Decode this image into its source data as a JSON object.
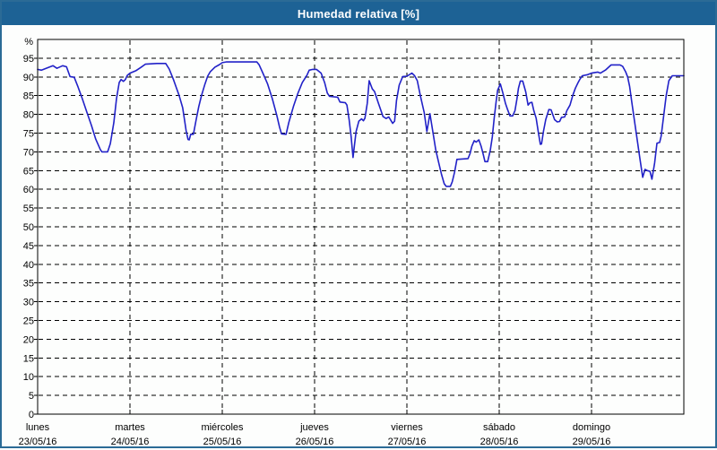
{
  "title": "Humedad relativa [%]",
  "colors": {
    "titlebar": "#1d6295",
    "frame": "#2b6b96",
    "background": "#fdfefd",
    "plot_background": "#ffffff",
    "line": "#2222c8",
    "grid": "#000000",
    "text": "#000000"
  },
  "y_axis": {
    "unit_label": "%",
    "ticks": [
      0,
      5,
      10,
      15,
      20,
      25,
      30,
      35,
      40,
      45,
      50,
      55,
      60,
      65,
      70,
      75,
      80,
      85,
      90,
      95
    ]
  },
  "x_axis": {
    "days": [
      {
        "name": "lunes",
        "date": "23/05/16"
      },
      {
        "name": "martes",
        "date": "24/05/16"
      },
      {
        "name": "miércoles",
        "date": "25/05/16"
      },
      {
        "name": "jueves",
        "date": "26/05/16"
      },
      {
        "name": "viernes",
        "date": "27/05/16"
      },
      {
        "name": "sábado",
        "date": "28/05/16"
      },
      {
        "name": "domingo",
        "date": "29/05/16"
      }
    ]
  },
  "chart_data": {
    "type": "line",
    "title": "Humedad relativa [%]",
    "ylabel": "%",
    "ylim": [
      0,
      100
    ],
    "x_unit": "hours_from_monday_00h",
    "x_range_hours": [
      0,
      168
    ],
    "grid": true,
    "legend": "none",
    "series": [
      {
        "name": "Humedad relativa",
        "color": "#2222c8",
        "points": [
          [
            0,
            92
          ],
          [
            1,
            91.8
          ],
          [
            2.5,
            92.4
          ],
          [
            4,
            93
          ],
          [
            5,
            92.3
          ],
          [
            6.5,
            93
          ],
          [
            7.5,
            92.7
          ],
          [
            8.4,
            90.1
          ],
          [
            9.5,
            89.9
          ],
          [
            10.5,
            87.3
          ],
          [
            11.6,
            84.2
          ],
          [
            12.8,
            80.6
          ],
          [
            14,
            77
          ],
          [
            15.1,
            73.4
          ],
          [
            16.3,
            70.6
          ],
          [
            16.7,
            70
          ],
          [
            18.2,
            70
          ],
          [
            18.9,
            72.2
          ],
          [
            19.8,
            77.8
          ],
          [
            20.5,
            84.2
          ],
          [
            21.2,
            88.5
          ],
          [
            21.7,
            89.3
          ],
          [
            22.3,
            88.8
          ],
          [
            22.8,
            89.3
          ],
          [
            23.3,
            90.4
          ],
          [
            24,
            91
          ],
          [
            25.6,
            91.7
          ],
          [
            26.8,
            92.5
          ],
          [
            28,
            93.4
          ],
          [
            31,
            93.6
          ],
          [
            33.3,
            93.6
          ],
          [
            34.2,
            92.1
          ],
          [
            35.3,
            89.3
          ],
          [
            36,
            87.3
          ],
          [
            36.8,
            85
          ],
          [
            37.7,
            81.8
          ],
          [
            38.2,
            78.5
          ],
          [
            38.6,
            75.6
          ],
          [
            39.1,
            73.3
          ],
          [
            39.4,
            73.2
          ],
          [
            39.8,
            74.7
          ],
          [
            40.5,
            74.7
          ],
          [
            41.2,
            78.5
          ],
          [
            41.9,
            82.1
          ],
          [
            42.6,
            85
          ],
          [
            43.5,
            88.1
          ],
          [
            44.2,
            90.2
          ],
          [
            44.9,
            91.4
          ],
          [
            46.1,
            92.6
          ],
          [
            47.3,
            93.3
          ],
          [
            48,
            93.8
          ],
          [
            49,
            94
          ],
          [
            57,
            94
          ],
          [
            57.6,
            93.2
          ],
          [
            58.6,
            90.9
          ],
          [
            59.8,
            88.1
          ],
          [
            61,
            84.2
          ],
          [
            62.2,
            79.7
          ],
          [
            62.9,
            76.6
          ],
          [
            63.4,
            74.8
          ],
          [
            64.6,
            74.7
          ],
          [
            65.3,
            77.8
          ],
          [
            66.5,
            82.1
          ],
          [
            67.7,
            85.7
          ],
          [
            68.8,
            88.5
          ],
          [
            70,
            90.4
          ],
          [
            70.6,
            91.8
          ],
          [
            71.5,
            92
          ],
          [
            72.5,
            92
          ],
          [
            73.7,
            91
          ],
          [
            74.6,
            88.5
          ],
          [
            75.3,
            85.7
          ],
          [
            75.9,
            84.8
          ],
          [
            78,
            84.6
          ],
          [
            78.6,
            83.3
          ],
          [
            80,
            83.1
          ],
          [
            80.4,
            82.5
          ],
          [
            81,
            78.5
          ],
          [
            81.5,
            74
          ],
          [
            82,
            68.5
          ],
          [
            82.4,
            72
          ],
          [
            82.8,
            75.4
          ],
          [
            83.5,
            78.2
          ],
          [
            84.2,
            78.8
          ],
          [
            84.7,
            78.3
          ],
          [
            85.1,
            79
          ],
          [
            85.7,
            83
          ],
          [
            86.2,
            89
          ],
          [
            87,
            86.8
          ],
          [
            87.6,
            86.1
          ],
          [
            88.6,
            83
          ],
          [
            89.8,
            79.4
          ],
          [
            90.6,
            78.9
          ],
          [
            91.3,
            79.3
          ],
          [
            92.3,
            77.6
          ],
          [
            92.8,
            78.2
          ],
          [
            93.3,
            83.7
          ],
          [
            94,
            87.8
          ],
          [
            94.9,
            90.1
          ],
          [
            96,
            90.2
          ],
          [
            97.3,
            91
          ],
          [
            98,
            90.3
          ],
          [
            98.7,
            89
          ],
          [
            99.5,
            85
          ],
          [
            100.5,
            80.5
          ],
          [
            101.2,
            75.4
          ],
          [
            102,
            80.2
          ],
          [
            102.8,
            75
          ],
          [
            103.5,
            70.5
          ],
          [
            104.3,
            67
          ],
          [
            105,
            64
          ],
          [
            105.7,
            61.5
          ],
          [
            106.2,
            60.8
          ],
          [
            107.3,
            60.8
          ],
          [
            107.8,
            62
          ],
          [
            108.4,
            64.6
          ],
          [
            109,
            68
          ],
          [
            111.9,
            68.2
          ],
          [
            112.4,
            69.5
          ],
          [
            112.9,
            71.5
          ],
          [
            113.5,
            73
          ],
          [
            114,
            72.6
          ],
          [
            114.7,
            73.2
          ],
          [
            115.3,
            71.5
          ],
          [
            115.8,
            69.5
          ],
          [
            116.3,
            67.4
          ],
          [
            117,
            67.4
          ],
          [
            117.7,
            70.5
          ],
          [
            118.2,
            74
          ],
          [
            118.7,
            79
          ],
          [
            119.2,
            83.5
          ],
          [
            119.6,
            86.5
          ],
          [
            120.3,
            88.1
          ],
          [
            121,
            85.5
          ],
          [
            121.6,
            83
          ],
          [
            122.1,
            81.5
          ],
          [
            122.8,
            79.6
          ],
          [
            123.5,
            79.6
          ],
          [
            124.1,
            81
          ],
          [
            124.6,
            84
          ],
          [
            125,
            87
          ],
          [
            125.5,
            88.9
          ],
          [
            126.1,
            88.9
          ],
          [
            126.9,
            86
          ],
          [
            127.5,
            82.5
          ],
          [
            128,
            83.1
          ],
          [
            128.5,
            83.2
          ],
          [
            129,
            81
          ],
          [
            129.6,
            79
          ],
          [
            130.2,
            75
          ],
          [
            130.7,
            72
          ],
          [
            131,
            72.1
          ],
          [
            131.5,
            75.5
          ],
          [
            132.1,
            78.6
          ],
          [
            132.9,
            81.3
          ],
          [
            133.5,
            81.2
          ],
          [
            134.4,
            78.6
          ],
          [
            135.1,
            78
          ],
          [
            135.7,
            78.1
          ],
          [
            136.2,
            79.2
          ],
          [
            137,
            79.3
          ],
          [
            137.6,
            81
          ],
          [
            138.4,
            82.5
          ],
          [
            139.1,
            85
          ],
          [
            139.8,
            87
          ],
          [
            140.5,
            88.5
          ],
          [
            141,
            89.4
          ],
          [
            141.6,
            90.3
          ],
          [
            143,
            90.6
          ],
          [
            144,
            91
          ],
          [
            145.6,
            91.3
          ],
          [
            146.3,
            91
          ],
          [
            147.7,
            91.9
          ],
          [
            149.1,
            93.2
          ],
          [
            151.4,
            93.2
          ],
          [
            152.1,
            92.8
          ],
          [
            152.9,
            91.3
          ],
          [
            153.4,
            90
          ],
          [
            153.9,
            87.5
          ],
          [
            154.5,
            83
          ],
          [
            155.2,
            78
          ],
          [
            155.9,
            73
          ],
          [
            156.6,
            68
          ],
          [
            157.3,
            63.2
          ],
          [
            157.9,
            65.3
          ],
          [
            158.5,
            65
          ],
          [
            159.2,
            64.8
          ],
          [
            159.7,
            62.7
          ],
          [
            160.4,
            67
          ],
          [
            161,
            72.3
          ],
          [
            161.7,
            72.5
          ],
          [
            162.1,
            74.2
          ],
          [
            162.8,
            80
          ],
          [
            163.4,
            85
          ],
          [
            164.1,
            89
          ],
          [
            165,
            90.3
          ],
          [
            168,
            90.3
          ]
        ]
      }
    ]
  }
}
